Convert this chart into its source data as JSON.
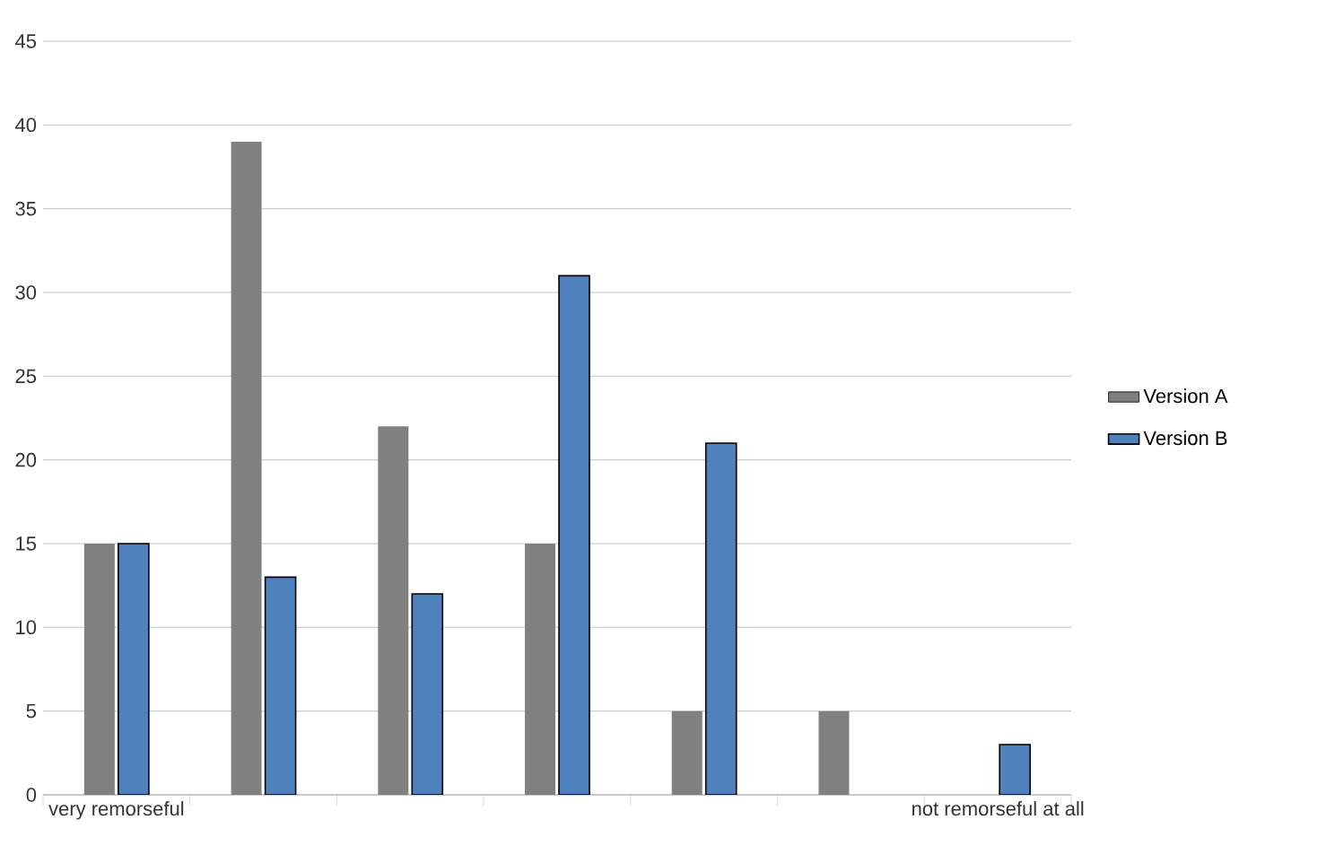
{
  "chart_data": {
    "type": "bar",
    "categories": [
      "very remorseful",
      null,
      null,
      null,
      null,
      null,
      "not remorseful at all"
    ],
    "series": [
      {
        "name": "Version A",
        "color": "#808080",
        "values": [
          15,
          39,
          22,
          15,
          5,
          5,
          0
        ]
      },
      {
        "name": "Version B",
        "color": "#4f81bd",
        "values": [
          15,
          13,
          12,
          31,
          21,
          0,
          3
        ]
      }
    ],
    "ylim": [
      0,
      45
    ],
    "yticks": [
      0,
      5,
      10,
      15,
      20,
      25,
      30,
      35,
      40,
      45
    ],
    "grid": "y",
    "legend": "right"
  }
}
